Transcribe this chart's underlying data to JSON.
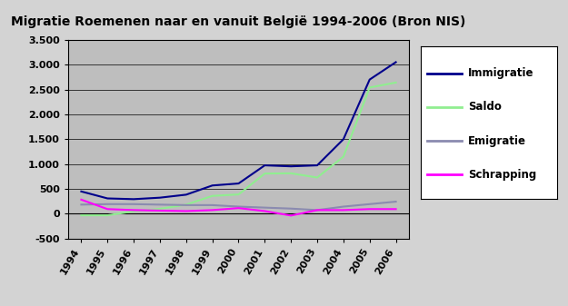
{
  "title": "Migratie Roemenen naar en vanuit België 1994-2006 (Bron NIS)",
  "years": [
    1994,
    1995,
    1996,
    1997,
    1998,
    1999,
    2000,
    2001,
    2002,
    2003,
    2004,
    2005,
    2006
  ],
  "immigratie": [
    450,
    310,
    295,
    325,
    385,
    570,
    610,
    975,
    955,
    975,
    1500,
    2700,
    3050
  ],
  "saldo": [
    -30,
    -30,
    50,
    100,
    185,
    360,
    390,
    810,
    815,
    730,
    1150,
    2540,
    2640
  ],
  "emigratie": [
    185,
    195,
    195,
    185,
    175,
    175,
    145,
    125,
    105,
    75,
    145,
    195,
    245
  ],
  "schrapping": [
    285,
    95,
    75,
    65,
    55,
    75,
    115,
    55,
    -35,
    75,
    75,
    95,
    95
  ],
  "line_colors": {
    "immigratie": "#00008B",
    "saldo": "#90EE90",
    "emigratie": "#8B8BB0",
    "schrapping": "#FF00FF"
  },
  "ylim": [
    -500,
    3500
  ],
  "yticks": [
    -500,
    0,
    500,
    1000,
    1500,
    2000,
    2500,
    3000,
    3500
  ],
  "ytick_labels": [
    "-500",
    "0",
    "500",
    "1.000",
    "1.500",
    "2.000",
    "2.500",
    "3.000",
    "3.500"
  ],
  "plot_bg_color": "#BEBEBE",
  "outer_bg_color": "#D3D3D3",
  "legend_labels": [
    "Immigratie",
    "Saldo",
    "Emigratie",
    "Schrapping"
  ],
  "title_fontsize": 10,
  "tick_fontsize": 8,
  "legend_fontsize": 8.5,
  "line_width": 1.5
}
